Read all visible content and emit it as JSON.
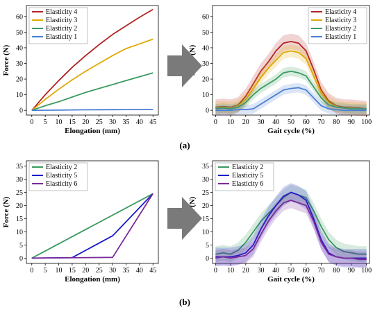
{
  "figure": {
    "label_a": "(a)",
    "label_b": "(b)",
    "colors": {
      "Elasticity 4": "#b22222",
      "Elasticity 3": "#e0a800",
      "Elasticity 2": "#3a9a60",
      "Elasticity 1": "#4a7fd4",
      "Elasticity 5": "#1a1acc",
      "Elasticity 6": "#7a2a9a",
      "arrow": "#7a7a7a"
    }
  },
  "chart_data": [
    {
      "id": "a-left",
      "type": "line",
      "xlabel": "Elongation (mm)",
      "ylabel": "Force (N)",
      "xticks": [
        0,
        5,
        10,
        15,
        20,
        25,
        30,
        35,
        40,
        45
      ],
      "yticks": [
        0,
        10,
        20,
        30,
        40,
        50,
        60
      ],
      "xlim": [
        -2,
        47
      ],
      "ylim": [
        -3,
        67
      ],
      "legend": "top-left",
      "x": [
        0,
        5,
        10,
        15,
        20,
        25,
        30,
        35,
        40,
        45
      ],
      "series": [
        {
          "name": "Elasticity 4",
          "values": [
            0,
            10,
            19,
            27.5,
            35,
            42,
            48.5,
            54,
            59.5,
            64.5
          ]
        },
        {
          "name": "Elasticity 3",
          "values": [
            0,
            7,
            13.5,
            19.5,
            25,
            30,
            35,
            39.5,
            42.5,
            45.5
          ]
        },
        {
          "name": "Elasticity 2",
          "values": [
            0,
            3,
            5.5,
            8.5,
            11.5,
            14,
            16.5,
            19,
            21.5,
            24
          ]
        },
        {
          "name": "Elasticity 1",
          "values": [
            0,
            0.1,
            0.2,
            0.3,
            0.35,
            0.4,
            0.45,
            0.5,
            0.55,
            0.6
          ]
        }
      ]
    },
    {
      "id": "a-right",
      "type": "line",
      "xlabel": "Gait cycle (%)",
      "ylabel": "Force (N)",
      "xticks": [
        0,
        10,
        20,
        30,
        40,
        50,
        60,
        70,
        80,
        90,
        100
      ],
      "yticks": [
        0,
        10,
        20,
        30,
        40,
        50,
        60
      ],
      "xlim": [
        -2,
        102
      ],
      "ylim": [
        -3,
        67
      ],
      "legend": "top-right",
      "x": [
        0,
        5,
        10,
        15,
        20,
        25,
        30,
        35,
        40,
        45,
        50,
        55,
        60,
        65,
        70,
        75,
        80,
        85,
        90,
        95,
        100
      ],
      "series": [
        {
          "name": "Elasticity 4",
          "band": 5,
          "values": [
            2,
            2.5,
            2,
            3.5,
            9,
            17,
            25,
            31,
            38,
            43,
            44,
            43,
            38,
            26,
            13,
            6,
            3,
            2,
            2,
            1.5,
            1
          ]
        },
        {
          "name": "Elasticity 3",
          "band": 4,
          "values": [
            1.5,
            2,
            1.5,
            3,
            7,
            14,
            21,
            27,
            32,
            37,
            38,
            37,
            33,
            22,
            11,
            5,
            2.5,
            1.5,
            1.5,
            1,
            1
          ]
        },
        {
          "name": "Elasticity 2",
          "band": 3,
          "values": [
            1,
            1.5,
            1,
            2,
            5,
            10,
            14,
            17,
            20,
            24,
            25,
            24,
            22,
            15,
            8,
            3.5,
            2,
            1.5,
            1,
            1,
            1
          ]
        },
        {
          "name": "Elasticity 1",
          "band": 3,
          "values": [
            0,
            0,
            0,
            0.5,
            0.5,
            1,
            4,
            7,
            10,
            13,
            14,
            14.5,
            13,
            8,
            3,
            1,
            0.5,
            0,
            0,
            0,
            0
          ]
        }
      ]
    },
    {
      "id": "b-left",
      "type": "line",
      "xlabel": "Elongation (mm)",
      "ylabel": "Force (N)",
      "xticks": [
        0,
        5,
        10,
        15,
        20,
        25,
        30,
        35,
        40,
        45
      ],
      "yticks": [
        0,
        5,
        10,
        15,
        20,
        25,
        30,
        35
      ],
      "xlim": [
        -2,
        47
      ],
      "ylim": [
        -2,
        37
      ],
      "legend": "top-left",
      "series": [
        {
          "name": "Elasticity 2",
          "x": [
            0,
            45
          ],
          "values": [
            0,
            24.5
          ]
        },
        {
          "name": "Elasticity 5",
          "x": [
            0,
            15,
            30,
            45
          ],
          "values": [
            0,
            0.2,
            8.5,
            24.5
          ]
        },
        {
          "name": "Elasticity 6",
          "x": [
            0,
            30,
            45
          ],
          "values": [
            0,
            0.3,
            24.5
          ]
        }
      ]
    },
    {
      "id": "b-right",
      "type": "line",
      "xlabel": "Gait cycle (%)",
      "ylabel": "Force (N)",
      "xticks": [
        0,
        10,
        20,
        30,
        40,
        50,
        60,
        70,
        80,
        90,
        100
      ],
      "yticks": [
        0,
        5,
        10,
        15,
        20,
        25,
        30,
        35
      ],
      "xlim": [
        -2,
        102
      ],
      "ylim": [
        -2,
        37
      ],
      "legend": "top-left",
      "x": [
        0,
        5,
        10,
        15,
        20,
        25,
        30,
        35,
        40,
        45,
        50,
        55,
        60,
        65,
        70,
        75,
        80,
        85,
        90,
        95,
        100
      ],
      "series": [
        {
          "name": "Elasticity 2",
          "band": 3,
          "values": [
            1.5,
            2,
            1.5,
            3,
            6,
            10,
            14,
            17,
            20,
            23,
            25,
            24,
            23,
            18,
            12,
            7,
            4,
            2.5,
            2,
            1.5,
            1.5
          ]
        },
        {
          "name": "Elasticity 5",
          "band": 3.5,
          "values": [
            0.5,
            0.5,
            0.5,
            1,
            2,
            5,
            11,
            16,
            20,
            23.5,
            25,
            24,
            22,
            15,
            7,
            2,
            0.5,
            0,
            0,
            0,
            0
          ]
        },
        {
          "name": "Elasticity 6",
          "band": 3,
          "values": [
            0,
            0.5,
            0,
            0.5,
            1,
            3.5,
            9,
            14,
            18,
            21,
            22,
            21,
            20,
            14,
            6,
            1.5,
            0.5,
            0,
            0,
            -0.5,
            -0.5
          ]
        }
      ]
    }
  ]
}
